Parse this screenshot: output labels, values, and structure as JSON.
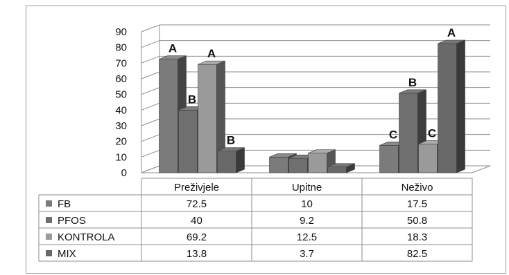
{
  "chart_data": {
    "type": "bar",
    "categories": [
      "Preživjele",
      "Upitne",
      "Neživo"
    ],
    "series": [
      {
        "name": "FB",
        "values": [
          72.5,
          10,
          17.5
        ],
        "color": "#7b7b7b",
        "labels": [
          "A",
          "",
          "C"
        ]
      },
      {
        "name": "PFOS",
        "values": [
          40,
          9.2,
          50.8
        ],
        "color": "#6f6f6f",
        "labels": [
          "B",
          "",
          "B"
        ]
      },
      {
        "name": "KONTROLA",
        "values": [
          69.2,
          12.5,
          18.3
        ],
        "color": "#9a9a9a",
        "labels": [
          "A",
          "",
          "C"
        ]
      },
      {
        "name": "MIX",
        "values": [
          13.8,
          3.7,
          82.5
        ],
        "color": "#696969",
        "labels": [
          "B",
          "",
          "A"
        ]
      }
    ],
    "yticks": [
      0,
      10,
      20,
      30,
      40,
      50,
      60,
      70,
      80,
      90
    ],
    "ylim": [
      0,
      90
    ],
    "grid": true,
    "style": "3d-column",
    "data_table": true,
    "title": "",
    "xlabel": "",
    "ylabel": ""
  }
}
